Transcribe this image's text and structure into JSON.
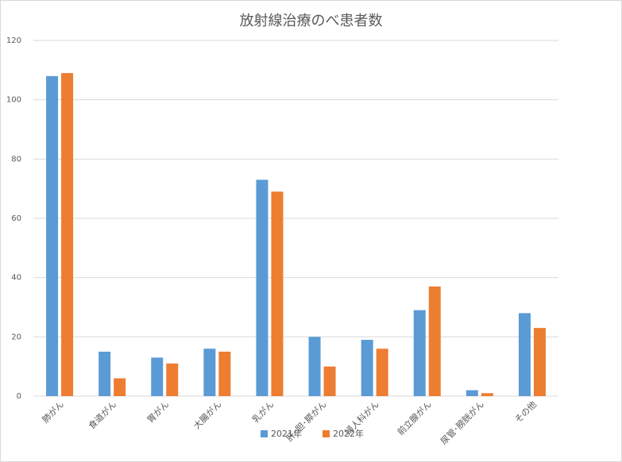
{
  "colors": {
    "series_2021": "#5b9bd5",
    "series_2022": "#ed7d31",
    "grid": "#d9d9d9",
    "text": "#595959"
  },
  "chart_data": {
    "type": "bar",
    "title": "放射線治療のべ患者数",
    "xlabel": "",
    "ylabel": "",
    "ylim": [
      0,
      120
    ],
    "yticks": [
      0,
      20,
      40,
      60,
      80,
      100,
      120
    ],
    "grid": true,
    "legend": "bottom",
    "categories": [
      "肺がん",
      "食道がん",
      "胃がん",
      "大腸がん",
      "乳がん",
      "肝･胆･膵がん",
      "婦人科がん",
      "前立腺がん",
      "尿管･膀胱がん",
      "その他"
    ],
    "series": [
      {
        "name": "2021年",
        "values": [
          108,
          15,
          13,
          16,
          73,
          20,
          19,
          29,
          2,
          28
        ]
      },
      {
        "name": "2022年",
        "values": [
          109,
          6,
          11,
          15,
          69,
          10,
          16,
          37,
          1,
          23
        ]
      }
    ]
  }
}
